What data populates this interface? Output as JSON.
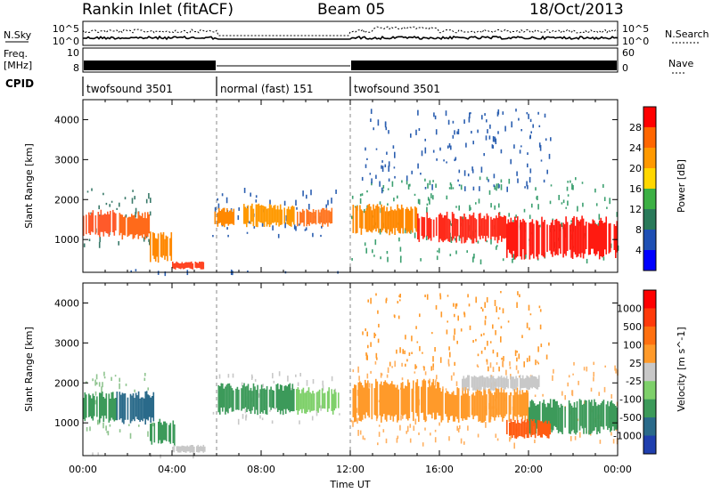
{
  "header": {
    "station": "Rankin Inlet (fitACF)",
    "beam": "Beam 05",
    "date": "18/Oct/2013"
  },
  "status_panel": {
    "left_labels": {
      "nsky": "N.Sky",
      "freq_line1": "Freq.",
      "freq_line2": "[MHz]",
      "cpid": "CPID"
    },
    "right_labels": {
      "nsearch": "N.Search",
      "nave": "Nave"
    },
    "nsky_ticks": [
      "10^5",
      "10^0"
    ],
    "nsearch_ticks": [
      "10^5",
      "10^0"
    ],
    "freq_ticks": [
      "10",
      "8"
    ],
    "nave_ticks": [
      "60",
      "0"
    ],
    "cpid_segments": [
      {
        "label": "twofsound 3501",
        "start_hr": 0.0,
        "end_hr": 6.0
      },
      {
        "label": "normal (fast) 151",
        "start_hr": 6.0,
        "end_hr": 12.0
      },
      {
        "label": "twofsound 3501",
        "start_hr": 12.0,
        "end_hr": 24.0
      }
    ]
  },
  "chart_data": [
    {
      "type": "heatmap",
      "name": "power",
      "ylabel": "Slant Range [km]",
      "xlim": [
        0,
        24
      ],
      "ylim": [
        180,
        4500
      ],
      "yticks": [
        "1000",
        "2000",
        "3000",
        "4000"
      ],
      "colorbar": {
        "label": "Power [dB]",
        "ticks": [
          "4",
          "8",
          "12",
          "16",
          "20",
          "24",
          "28"
        ],
        "colors": [
          "#0000ff",
          "#1e4fb4",
          "#2a7a5a",
          "#3cb044",
          "#ffd700",
          "#ff9900",
          "#ff6600",
          "#ff0000"
        ]
      },
      "patches": [
        {
          "x0": 0.0,
          "x1": 1.5,
          "y0": 1050,
          "y1": 1750,
          "v": "#ff5a2a"
        },
        {
          "x0": 1.5,
          "x1": 3.0,
          "y0": 1000,
          "y1": 1700,
          "v": "#ff6a1a"
        },
        {
          "x0": 3.0,
          "x1": 4.0,
          "y0": 400,
          "y1": 1200,
          "v": "#ff8800"
        },
        {
          "x0": 4.0,
          "x1": 5.5,
          "y0": 250,
          "y1": 450,
          "v": "#ff4422"
        },
        {
          "x0": 5.9,
          "x1": 6.8,
          "y0": 1300,
          "y1": 1800,
          "v": "#ff8800"
        },
        {
          "x0": 7.2,
          "x1": 9.5,
          "y0": 1300,
          "y1": 1900,
          "v": "#ff9900"
        },
        {
          "x0": 9.6,
          "x1": 11.2,
          "y0": 1300,
          "y1": 1800,
          "v": "#ff7722"
        },
        {
          "x0": 12.1,
          "x1": 15.0,
          "y0": 1100,
          "y1": 1900,
          "v": "#ff8800"
        },
        {
          "x0": 15.0,
          "x1": 19.0,
          "y0": 900,
          "y1": 1700,
          "v": "#ff2a1a"
        },
        {
          "x0": 19.0,
          "x1": 24.0,
          "y0": 500,
          "y1": 1600,
          "v": "#ff1a10"
        }
      ],
      "halo": [
        {
          "x0": 0.0,
          "x1": 3.2,
          "y0": 900,
          "y1": 2400,
          "v": "#3a7a6a"
        },
        {
          "x0": 5.8,
          "x1": 11.5,
          "y0": 1100,
          "y1": 2300,
          "v": "#2b5fb0"
        },
        {
          "x0": 12.0,
          "x1": 24.0,
          "y0": 500,
          "y1": 2600,
          "v": "#3ca070"
        },
        {
          "x0": 12.5,
          "x1": 21.0,
          "y0": 2300,
          "y1": 4300,
          "v": "#2b5fb0"
        },
        {
          "x0": 0.2,
          "x1": 6.0,
          "y0": 200,
          "y1": 300,
          "v": "#2b5fb0"
        },
        {
          "x0": 6.0,
          "x1": 12.0,
          "y0": 200,
          "y1": 290,
          "v": "#2b5fb0"
        }
      ]
    },
    {
      "type": "heatmap",
      "name": "velocity",
      "ylabel": "Slant Range [km]",
      "xlabel": "Time UT",
      "xlim": [
        0,
        24
      ],
      "ylim": [
        180,
        4500
      ],
      "xticks": [
        "00:00",
        "04:00",
        "08:00",
        "12:00",
        "16:00",
        "20:00",
        "00:00"
      ],
      "yticks": [
        "1000",
        "2000",
        "3000",
        "4000"
      ],
      "colorbar": {
        "label": "Velocity [m s^-1]",
        "ticks": [
          "1000",
          "500",
          "100",
          "25",
          "-25",
          "-100",
          "-500",
          "-1000"
        ],
        "colors": [
          "#1f3fae",
          "#2a6a8a",
          "#3c9a5a",
          "#7ed06a",
          "#c8c8c8",
          "#ff9a2a",
          "#ff7010",
          "#ff3a0a",
          "#ff0000"
        ]
      },
      "patches": [
        {
          "x0": 0.0,
          "x1": 1.5,
          "y0": 1000,
          "y1": 1800,
          "v": "#3c9a5a"
        },
        {
          "x0": 1.5,
          "x1": 3.2,
          "y0": 950,
          "y1": 1800,
          "v": "#2a6a8a"
        },
        {
          "x0": 3.0,
          "x1": 4.2,
          "y0": 400,
          "y1": 1100,
          "v": "#3c9a5a"
        },
        {
          "x0": 4.0,
          "x1": 5.5,
          "y0": 250,
          "y1": 450,
          "v": "#c8c8c8"
        },
        {
          "x0": 6.0,
          "x1": 9.5,
          "y0": 1200,
          "y1": 2000,
          "v": "#3c9a5a"
        },
        {
          "x0": 9.5,
          "x1": 11.5,
          "y0": 1200,
          "y1": 1900,
          "v": "#7ed06a"
        },
        {
          "x0": 12.1,
          "x1": 16.0,
          "y0": 1000,
          "y1": 2100,
          "v": "#ff9a2a"
        },
        {
          "x0": 16.0,
          "x1": 20.0,
          "y0": 1000,
          "y1": 1900,
          "v": "#ff9a2a"
        },
        {
          "x0": 17.0,
          "x1": 20.5,
          "y0": 1800,
          "y1": 2200,
          "v": "#c8c8c8"
        },
        {
          "x0": 20.0,
          "x1": 24.0,
          "y0": 700,
          "y1": 1600,
          "v": "#3c9a5a"
        },
        {
          "x0": 19.0,
          "x1": 21.0,
          "y0": 600,
          "y1": 1100,
          "v": "#ff5a10"
        }
      ],
      "halo": [
        {
          "x0": 0.0,
          "x1": 3.2,
          "y0": 700,
          "y1": 2300,
          "v": "#8fc48f"
        },
        {
          "x0": 5.8,
          "x1": 11.5,
          "y0": 1000,
          "y1": 2300,
          "v": "#c8c8c8"
        },
        {
          "x0": 12.0,
          "x1": 24.0,
          "y0": 500,
          "y1": 2600,
          "v": "#ffb060"
        },
        {
          "x0": 12.5,
          "x1": 21.0,
          "y0": 2400,
          "y1": 4300,
          "v": "#ff9a2a"
        },
        {
          "x0": 0.2,
          "x1": 6.0,
          "y0": 200,
          "y1": 300,
          "v": "#c8c8c8"
        }
      ]
    }
  ]
}
